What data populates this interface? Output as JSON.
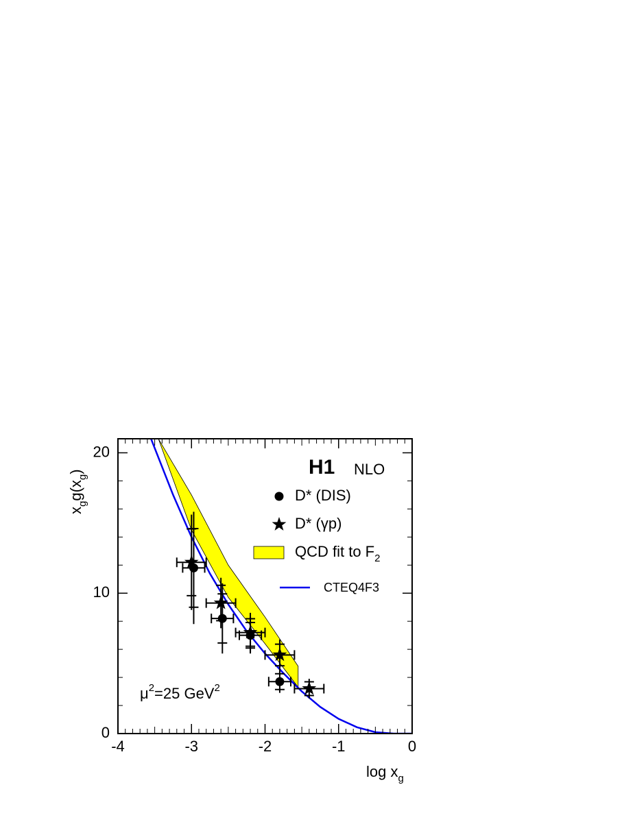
{
  "chart_data": {
    "type": "scatter",
    "y_label": [
      "x",
      "g",
      "g(x",
      "g",
      ")"
    ],
    "x_label": [
      "log x",
      "g"
    ],
    "header": "H1",
    "subheader": "NLO",
    "annotation": [
      "μ",
      "2",
      "=25 GeV",
      "2"
    ],
    "xlim": [
      -4,
      0
    ],
    "ylim": [
      0,
      21
    ],
    "xticks": [
      -4,
      -3,
      -2,
      -1,
      0
    ],
    "yticks": [
      0,
      10,
      20
    ],
    "series": [
      {
        "name": "D* (DIS)",
        "marker": "circle",
        "color": "#000000",
        "x": [
          -2.97,
          -2.58,
          -2.2,
          -1.8
        ],
        "values": [
          11.8,
          8.2,
          7.0,
          3.7
        ],
        "yerr": [
          4.0,
          2.5,
          1.3,
          0.8
        ],
        "xerr": [
          0.15,
          0.15,
          0.15,
          0.15
        ]
      },
      {
        "name": "D* (γp)",
        "marker": "star",
        "color": "#000000",
        "x": [
          -3.0,
          -2.6,
          -2.2,
          -1.8,
          -1.4
        ],
        "values": [
          12.2,
          9.3,
          7.2,
          5.6,
          3.2
        ],
        "yerr": [
          3.4,
          1.8,
          1.4,
          1.1,
          0.7
        ],
        "xerr": [
          0.2,
          0.2,
          0.2,
          0.2,
          0.2
        ]
      }
    ],
    "band": {
      "name": "QCD fit to F",
      "name_sub": "2",
      "color": "#ffff00",
      "x": [
        -3.45,
        -3.0,
        -2.5,
        -2.0,
        -1.55
      ],
      "lower": [
        21,
        14.5,
        9.7,
        6.4,
        3.3
      ],
      "upper": [
        21,
        17.0,
        12.0,
        8.3,
        4.8
      ]
    },
    "curve": {
      "name": "CTEQ4F3",
      "color": "#0000ee",
      "x": [
        -3.55,
        -3.25,
        -3.0,
        -2.75,
        -2.5,
        -2.25,
        -2.0,
        -1.75,
        -1.5,
        -1.25,
        -1.0,
        -0.75,
        -0.5,
        -0.25,
        0
      ],
      "values": [
        21,
        17.0,
        14.0,
        11.4,
        9.2,
        7.3,
        5.7,
        4.3,
        3.0,
        1.9,
        1.05,
        0.45,
        0.1,
        0,
        0
      ]
    }
  }
}
